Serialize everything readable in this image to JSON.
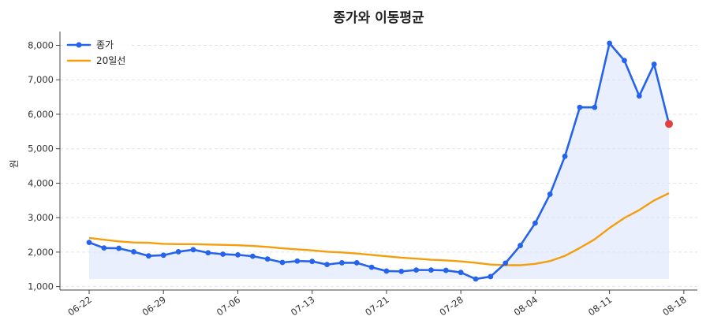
{
  "chart_data": {
    "type": "line",
    "title": "종가와 이동평균",
    "xlabel": "",
    "ylabel": "원",
    "ylim": [
      900,
      8400
    ],
    "y_ticks": [
      1000,
      2000,
      3000,
      4000,
      5000,
      6000,
      7000,
      8000
    ],
    "y_tick_labels": [
      "1,000",
      "2,000",
      "3,000",
      "4,000",
      "5,000",
      "6,000",
      "7,000",
      "8,000"
    ],
    "x_ticks": [
      "06-22",
      "06-29",
      "07-06",
      "07-13",
      "07-21",
      "07-28",
      "08-04",
      "08-11",
      "08-18"
    ],
    "x_tick_positions": [
      0,
      5,
      10,
      15,
      20,
      25,
      30,
      35,
      40
    ],
    "grid": "horizontal-dashed",
    "legend_position": "top-left",
    "colors": {
      "close": "#2563eb",
      "ma20": "#f59e0b",
      "fill": "#dbe5fb",
      "last_point": "#e53e3e"
    },
    "series": [
      {
        "name": "종가",
        "values": [
          2280,
          2120,
          2110,
          2010,
          1890,
          1910,
          2010,
          2070,
          1980,
          1940,
          1920,
          1880,
          1800,
          1700,
          1740,
          1730,
          1640,
          1690,
          1690,
          1560,
          1450,
          1440,
          1480,
          1480,
          1470,
          1410,
          1220,
          1290,
          1680,
          2190,
          2840,
          3680,
          4780,
          6200,
          6200,
          8060,
          7560,
          6530,
          7450,
          5720
        ]
      },
      {
        "name": "20일선",
        "values": [
          2410,
          2360,
          2310,
          2280,
          2270,
          2240,
          2230,
          2230,
          2220,
          2210,
          2200,
          2180,
          2150,
          2110,
          2080,
          2050,
          2010,
          1990,
          1960,
          1920,
          1880,
          1840,
          1810,
          1780,
          1760,
          1730,
          1690,
          1640,
          1620,
          1620,
          1660,
          1740,
          1890,
          2120,
          2370,
          2700,
          2990,
          3220,
          3500,
          3710
        ]
      }
    ]
  }
}
